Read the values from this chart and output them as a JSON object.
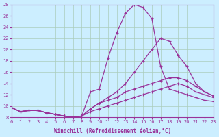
{
  "xlabel": "Windchill (Refroidissement éolien,°C)",
  "bg_color": "#cceeff",
  "line_color": "#993399",
  "grid_color": "#aaccbb",
  "xmin": 0,
  "xmax": 23,
  "ymin": 8,
  "ymax": 28,
  "yticks": [
    8,
    10,
    12,
    14,
    16,
    18,
    20,
    22,
    24,
    26,
    28
  ],
  "xticks": [
    0,
    1,
    2,
    3,
    4,
    5,
    6,
    7,
    8,
    9,
    10,
    11,
    12,
    13,
    14,
    15,
    16,
    17,
    18,
    19,
    20,
    21,
    22,
    23
  ],
  "curves": [
    [
      9.7,
      9.0,
      9.2,
      9.2,
      8.8,
      8.5,
      8.2,
      8.0,
      8.2,
      9.0,
      9.5,
      10.0,
      10.5,
      11.0,
      11.5,
      12.0,
      12.5,
      13.0,
      13.5,
      14.0,
      13.5,
      12.5,
      12.0,
      11.5
    ],
    [
      9.7,
      9.0,
      9.2,
      9.2,
      8.8,
      8.5,
      8.2,
      8.0,
      8.2,
      9.5,
      10.5,
      11.0,
      11.5,
      12.5,
      13.0,
      13.5,
      14.0,
      14.5,
      15.0,
      15.0,
      14.5,
      13.5,
      12.5,
      11.8
    ],
    [
      9.7,
      9.0,
      9.2,
      9.2,
      8.8,
      8.5,
      8.2,
      8.0,
      8.2,
      9.5,
      10.5,
      11.5,
      12.5,
      14.0,
      16.0,
      18.0,
      20.0,
      22.0,
      21.5,
      19.0,
      17.0,
      14.0,
      12.5,
      11.8
    ],
    [
      9.7,
      9.0,
      9.2,
      9.2,
      8.8,
      8.5,
      8.2,
      8.0,
      8.2,
      12.5,
      13.0,
      18.5,
      23.0,
      26.5,
      28.0,
      27.5,
      25.5,
      17.0,
      13.0,
      12.5,
      12.0,
      11.5,
      11.0,
      10.8
    ]
  ]
}
